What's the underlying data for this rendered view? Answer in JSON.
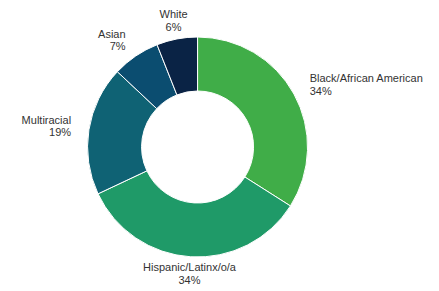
{
  "chart_data": {
    "type": "donut",
    "categories": [
      "Black/African American",
      "Hispanic/Latinx/o/a",
      "Multiracial",
      "Asian",
      "White"
    ],
    "values": [
      34,
      34,
      19,
      7,
      6
    ],
    "value_labels": [
      "34%",
      "34%",
      "19%",
      "7%",
      "6%"
    ],
    "colors": [
      "#40ad48",
      "#1f9a68",
      "#0f6274",
      "#0b4d70",
      "#0a2345"
    ],
    "data_labels": true
  }
}
